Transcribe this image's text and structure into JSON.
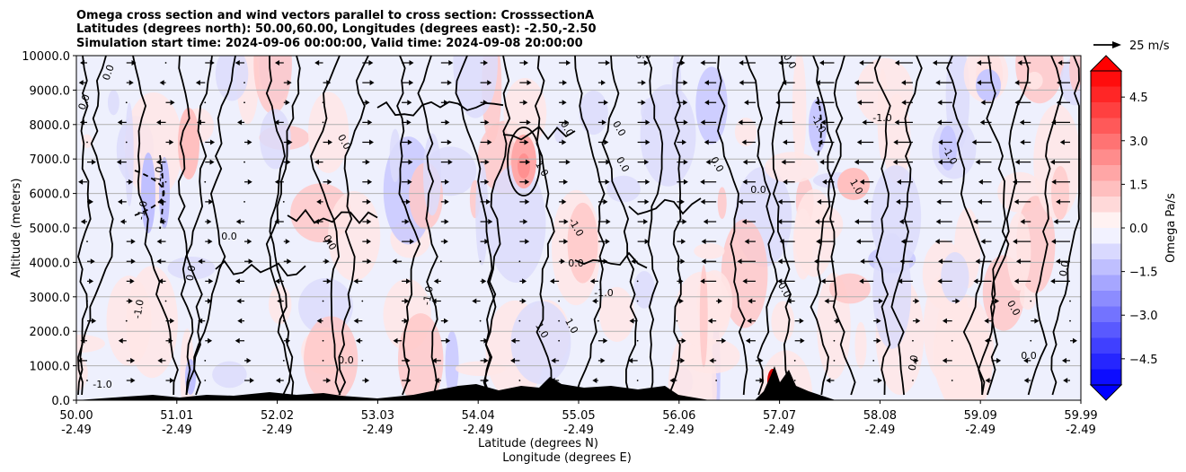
{
  "chart_data": {
    "type": "contour",
    "title": [
      "Omega cross section and wind vectors parallel to cross section: CrosssectionA",
      "Latitudes (degrees north): 50.00,60.00, Longitudes (degrees east): -2.50,-2.50",
      "Simulation start time: 2024-09-06 00:00:00, Valid time: 2024-09-08 20:00:00"
    ],
    "ylabel": "Altitude (meters)",
    "xlabel_lat": "Latitude (degrees N)",
    "xlabel_lon": "Longitude (degrees E)",
    "ylim": [
      0,
      10000
    ],
    "yticks": [
      "0.0",
      "1000.0",
      "2000.0",
      "3000.0",
      "4000.0",
      "5000.0",
      "6000.0",
      "7000.0",
      "8000.0",
      "9000.0",
      "10000.0"
    ],
    "xticks": [
      {
        "lat": "50.00",
        "lon": "-2.49"
      },
      {
        "lat": "51.01",
        "lon": "-2.49"
      },
      {
        "lat": "52.02",
        "lon": "-2.49"
      },
      {
        "lat": "53.03",
        "lon": "-2.49"
      },
      {
        "lat": "54.04",
        "lon": "-2.49"
      },
      {
        "lat": "55.05",
        "lon": "-2.49"
      },
      {
        "lat": "56.06",
        "lon": "-2.49"
      },
      {
        "lat": "57.07",
        "lon": "-2.49"
      },
      {
        "lat": "58.08",
        "lon": "-2.49"
      },
      {
        "lat": "59.09",
        "lon": "-2.49"
      },
      {
        "lat": "59.99",
        "lon": "-2.49"
      }
    ],
    "colorbar": {
      "label": "Omega Pa/s",
      "range": [
        -5.4,
        5.4
      ],
      "ticks": [
        "4.5",
        "3.0",
        "1.5",
        "0.0",
        "−1.5",
        "−3.0",
        "−4.5"
      ],
      "tick_values": [
        4.5,
        3.0,
        1.5,
        0.0,
        -1.5,
        -3.0,
        -4.5
      ],
      "low_color": "#0000ff",
      "mid_color": "#ffffff",
      "high_color": "#ff0000"
    },
    "wind_key": "25 m/s",
    "contour_labels": [
      "0.0",
      "-1.0",
      "1.0"
    ],
    "grid": true,
    "terrain_color": "#000000",
    "contour_color": "#000000"
  }
}
